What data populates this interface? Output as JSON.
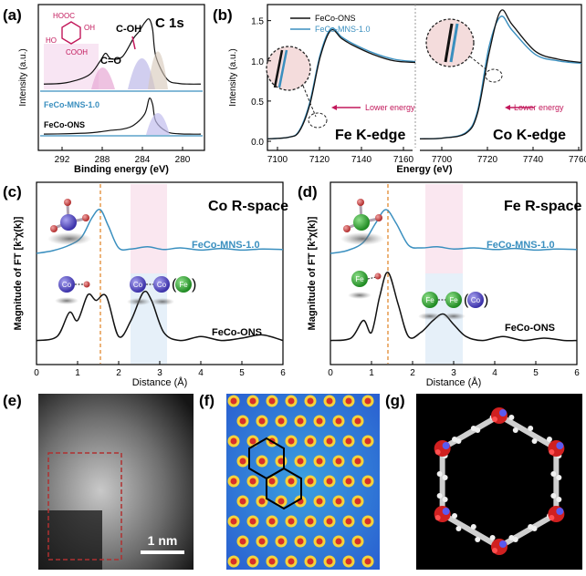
{
  "panels": {
    "a": {
      "letter": "(a)",
      "title": "C 1s",
      "xlabel": "Binding energy (eV)",
      "ylabel": "Intensity (a.u.)",
      "xticks": [
        "292",
        "288",
        "284",
        "280"
      ],
      "peak_labels": [
        "C=O",
        "C-OH"
      ],
      "sample_labels": [
        "FeCo-MNS-1.0",
        "FeCo-ONS"
      ],
      "molecule_labels": [
        "HOOC",
        "OH",
        "HO",
        "COOH"
      ]
    },
    "b": {
      "letter": "(b)",
      "xlabel": "Energy (eV)",
      "ylabel": "Intensity (a.u.)",
      "legend": [
        "FeCo-ONS",
        "FeCo-MNS-1.0"
      ],
      "yticks": [
        "0.0",
        "0.5",
        "1.0",
        "1.5"
      ],
      "xticks_left": [
        "7100",
        "7120",
        "7140",
        "7160"
      ],
      "xticks_right": [
        "7700",
        "7720",
        "7740",
        "7760"
      ],
      "edge_left": "Fe K-edge",
      "edge_right": "Co K-edge",
      "annotation": "Lower energy"
    },
    "c": {
      "letter": "(c)",
      "title": "Co R-space",
      "xlabel": "Distance (Å)",
      "ylabel": "Magnitude of FT [k³χ(k)]",
      "xticks": [
        "0",
        "1",
        "2",
        "3",
        "4",
        "5",
        "6"
      ],
      "series_labels": [
        "FeCo-MNS-1.0",
        "FeCo-ONS"
      ],
      "atoms": [
        "Co",
        "Co",
        "Co",
        "Fe"
      ]
    },
    "d": {
      "letter": "(d)",
      "title": "Fe R-space",
      "xlabel": "Distance (Å)",
      "ylabel": "Magnitude of FT [k³χ(k)]",
      "xticks": [
        "0",
        "1",
        "2",
        "3",
        "4",
        "5",
        "6"
      ],
      "series_labels": [
        "FeCo-MNS-1.0",
        "FeCo-ONS"
      ],
      "atoms": [
        "Fe",
        "Fe",
        "Fe",
        "Co"
      ]
    },
    "e": {
      "letter": "(e)",
      "scalebar": "1 nm"
    },
    "f": {
      "letter": "(f)"
    },
    "g": {
      "letter": "(g)"
    }
  },
  "colors": {
    "blue": "#3a8fbf",
    "black": "#111111",
    "pink": "#c2185b",
    "orange": "#e08020",
    "purple": "#6a3fa0"
  },
  "chart_data": [
    {
      "type": "line",
      "panel": "a",
      "title": "C 1s",
      "xlabel": "Binding energy (eV)",
      "ylabel": "Intensity (a.u.)",
      "xlim": [
        294,
        280
      ],
      "series": [
        {
          "name": "FeCo-MNS-1.0",
          "x": [
            294,
            292,
            290,
            289,
            288.5,
            288,
            287,
            286,
            285.5,
            285,
            284.6,
            284.3,
            284,
            283,
            282,
            281,
            280
          ],
          "values": [
            0.05,
            0.07,
            0.18,
            0.38,
            0.5,
            0.42,
            0.45,
            0.72,
            0.82,
            0.95,
            1.0,
            0.85,
            0.45,
            0.12,
            0.06,
            0.05,
            0.05
          ]
        },
        {
          "name": "FeCo-ONS",
          "x": [
            294,
            292,
            290,
            289,
            288,
            287,
            286,
            285,
            284.6,
            284.3,
            284,
            283,
            282,
            281,
            280
          ],
          "values": [
            0.02,
            0.03,
            0.05,
            0.08,
            0.12,
            0.15,
            0.25,
            0.55,
            0.95,
            0.8,
            0.35,
            0.08,
            0.03,
            0.02,
            0.02
          ]
        }
      ]
    },
    {
      "type": "line",
      "panel": "b",
      "xlabel": "Energy (eV)",
      "ylabel": "Intensity (a.u.)",
      "ylim": [
        0,
        1.7
      ],
      "series": [
        {
          "name": "FeCo-ONS",
          "x": [
            7100,
            7110,
            7115,
            7120,
            7125,
            7130,
            7135,
            7140,
            7150,
            7160,
            7170
          ],
          "values": [
            0.03,
            0.05,
            0.12,
            0.45,
            1.05,
            1.38,
            1.28,
            1.2,
            1.08,
            1.0,
            0.98
          ]
        },
        {
          "name": "FeCo-MNS-1.0",
          "x": [
            7100,
            7110,
            7115,
            7120,
            7125,
            7130,
            7135,
            7140,
            7150,
            7160,
            7170
          ],
          "values": [
            0.03,
            0.05,
            0.13,
            0.48,
            1.08,
            1.4,
            1.3,
            1.22,
            1.1,
            1.02,
            0.99
          ]
        },
        {
          "name": "FeCo-ONS Co",
          "x": [
            7690,
            7700,
            7710,
            7715,
            7720,
            7725,
            7730,
            7740,
            7750,
            7760
          ],
          "values": [
            0.03,
            0.04,
            0.1,
            0.35,
            1.1,
            1.62,
            1.45,
            1.12,
            1.02,
            0.98
          ]
        },
        {
          "name": "FeCo-MNS-1.0 Co",
          "x": [
            7690,
            7700,
            7710,
            7715,
            7720,
            7725,
            7730,
            7740,
            7750,
            7760
          ],
          "values": [
            0.03,
            0.04,
            0.11,
            0.38,
            1.18,
            1.55,
            1.38,
            1.08,
            1.0,
            0.97
          ]
        }
      ]
    },
    {
      "type": "line",
      "panel": "c",
      "title": "Co R-space",
      "xlabel": "Distance (Å)",
      "ylabel": "Magnitude of FT [k³χ(k)]",
      "xlim": [
        0,
        6
      ],
      "series": [
        {
          "name": "FeCo-MNS-1.0",
          "x": [
            0,
            0.4,
            0.8,
            1.1,
            1.35,
            1.55,
            1.75,
            2.0,
            2.3,
            2.7,
            3.1,
            3.5,
            4.0,
            4.5,
            5.0,
            5.5,
            6.0
          ],
          "values": [
            0.2,
            0.25,
            0.35,
            0.5,
            0.85,
            1.0,
            0.7,
            0.3,
            0.28,
            0.32,
            0.27,
            0.3,
            0.26,
            0.29,
            0.26,
            0.28,
            0.27
          ]
        },
        {
          "name": "FeCo-ONS",
          "x": [
            0,
            0.5,
            0.8,
            1.0,
            1.25,
            1.45,
            1.7,
            2.0,
            2.3,
            2.6,
            2.8,
            3.1,
            3.5,
            4.0,
            4.5,
            5.0,
            5.5,
            6.0
          ],
          "values": [
            0.05,
            0.1,
            0.4,
            0.3,
            0.62,
            0.55,
            0.6,
            0.1,
            0.3,
            0.65,
            0.55,
            0.15,
            0.05,
            0.1,
            0.05,
            0.08,
            0.12,
            0.05
          ]
        }
      ]
    },
    {
      "type": "line",
      "panel": "d",
      "title": "Fe R-space",
      "xlabel": "Distance (Å)",
      "ylabel": "Magnitude of FT [k³χ(k)]",
      "xlim": [
        0,
        6
      ],
      "series": [
        {
          "name": "FeCo-MNS-1.0",
          "x": [
            0,
            0.4,
            0.8,
            1.1,
            1.35,
            1.6,
            1.9,
            2.2,
            2.6,
            3.0,
            3.5,
            4.0,
            4.5,
            5.0,
            5.5,
            6.0
          ],
          "values": [
            0.2,
            0.25,
            0.4,
            0.75,
            1.0,
            0.75,
            0.35,
            0.3,
            0.32,
            0.28,
            0.3,
            0.27,
            0.29,
            0.26,
            0.28,
            0.27
          ]
        },
        {
          "name": "FeCo-ONS",
          "x": [
            0,
            0.5,
            0.8,
            1.0,
            1.2,
            1.4,
            1.65,
            1.9,
            2.2,
            2.5,
            2.75,
            3.0,
            3.3,
            3.7,
            4.2,
            4.7,
            5.2,
            5.7,
            6.0
          ],
          "values": [
            0.05,
            0.08,
            0.3,
            0.15,
            0.6,
            0.9,
            0.5,
            0.1,
            0.15,
            0.3,
            0.38,
            0.25,
            0.1,
            0.05,
            0.1,
            0.05,
            0.08,
            0.05,
            0.05
          ]
        }
      ]
    }
  ]
}
